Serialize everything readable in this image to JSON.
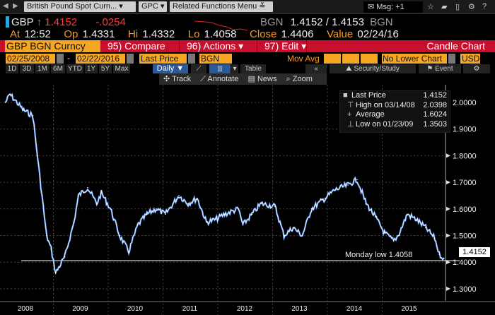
{
  "topbar": {
    "security": "British Pound Spot Curn...",
    "gpc": "GPC",
    "related": "Related Functions Menu",
    "msg": "Msg: +1"
  },
  "quote": {
    "ticker": "GBP",
    "last": "1.4152",
    "change": "-.0254",
    "source": "BGN",
    "bid_ask": "1.4152 / 1.4153",
    "source2": "BGN",
    "at_label": "At",
    "at": "12:52",
    "op_label": "Op",
    "op": "1.4331",
    "hi_label": "Hi",
    "hi": "1.4332",
    "lo_label": "Lo",
    "lo": "1.4058",
    "close_label": "Close",
    "close": "1.4406",
    "value_label": "Value",
    "value": "02/24/16"
  },
  "menubar": {
    "security": "GBP BGN Curncy",
    "compare": "95) Compare",
    "actions": "96) Actions",
    "edit": "97) Edit",
    "chart_type": "Candle Chart"
  },
  "fields": {
    "start": "02/25/2008",
    "end": "02/22/2016",
    "price": "Last Price",
    "source": "BGN",
    "movavg": "Mov Avg",
    "lower": "No Lower Chart",
    "currency": "USD"
  },
  "periods": [
    "1D",
    "3D",
    "1M",
    "6M",
    "YTD",
    "1Y",
    "5Y",
    "Max"
  ],
  "toolbar": {
    "freq": "Daily",
    "table": "Table",
    "security_study": "Security/Study",
    "event": "Event"
  },
  "chart_tools": {
    "track": "Track",
    "annotate": "Annotate",
    "news": "News",
    "zoom": "Zoom"
  },
  "legend": [
    {
      "label": "Last Price",
      "value": "1.4152"
    },
    {
      "label": "High on 03/14/08",
      "value": "2.0398"
    },
    {
      "label": "Average",
      "value": "1.6024"
    },
    {
      "label": "Low on 01/23/09",
      "value": "1.3503"
    }
  ],
  "annotation": "Monday low 1.4058",
  "last_tag": "1.4152",
  "colors": {
    "accent": "#f5a623",
    "bar": "#c8102e",
    "series": "#6fa8ff"
  },
  "chart_data": {
    "type": "line",
    "title": "",
    "ylim": [
      1.3,
      2.05
    ],
    "yticks": [
      "2.0000",
      "1.9000",
      "1.8000",
      "1.7000",
      "1.6000",
      "1.5000",
      "1.4000",
      "1.3000"
    ],
    "xticks": [
      "2008",
      "2009",
      "2010",
      "2011",
      "2012",
      "2013",
      "2014",
      "2015"
    ],
    "hline": 1.4058,
    "series": [
      {
        "x": [
          "2008-02",
          "2008-03",
          "2008-06",
          "2008-08",
          "2008-09",
          "2008-10",
          "2008-11",
          "2008-12",
          "2009-01",
          "2009-03",
          "2009-05",
          "2009-06",
          "2009-08",
          "2009-10",
          "2009-11",
          "2010-01",
          "2010-03",
          "2010-05",
          "2010-07",
          "2010-09",
          "2010-11",
          "2011-01",
          "2011-04",
          "2011-06",
          "2011-08",
          "2011-10",
          "2011-12",
          "2012-02",
          "2012-05",
          "2012-06",
          "2012-08",
          "2012-10",
          "2013-01",
          "2013-03",
          "2013-05",
          "2013-07",
          "2013-09",
          "2013-12",
          "2014-02",
          "2014-05",
          "2014-07",
          "2014-09",
          "2014-11",
          "2015-01",
          "2015-03",
          "2015-04",
          "2015-06",
          "2015-08",
          "2015-10",
          "2015-12",
          "2016-01",
          "2016-02"
        ],
        "values": [
          2.0,
          2.03,
          1.97,
          1.95,
          1.8,
          1.65,
          1.5,
          1.45,
          1.36,
          1.42,
          1.55,
          1.65,
          1.68,
          1.62,
          1.66,
          1.6,
          1.5,
          1.44,
          1.54,
          1.58,
          1.6,
          1.58,
          1.65,
          1.62,
          1.64,
          1.55,
          1.56,
          1.58,
          1.6,
          1.54,
          1.58,
          1.62,
          1.61,
          1.5,
          1.53,
          1.5,
          1.6,
          1.64,
          1.67,
          1.69,
          1.71,
          1.62,
          1.57,
          1.51,
          1.48,
          1.5,
          1.58,
          1.56,
          1.53,
          1.49,
          1.43,
          1.4152
        ]
      }
    ]
  }
}
